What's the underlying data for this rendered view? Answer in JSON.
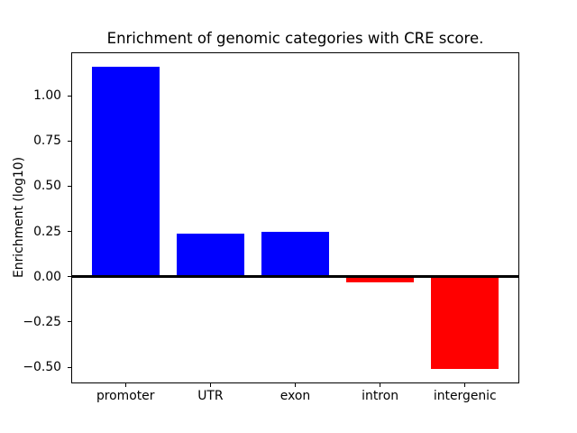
{
  "figure": {
    "background": "#ffffff"
  },
  "chart_data": {
    "type": "bar",
    "title": "Enrichment of genomic categories with CRE score.",
    "xlabel": "",
    "ylabel": "Enrichment (log10)",
    "categories": [
      "promoter",
      "UTR",
      "exon",
      "intron",
      "intergenic"
    ],
    "values": [
      1.16,
      0.24,
      0.25,
      -0.03,
      -0.51
    ],
    "bar_colors": [
      "#0000ff",
      "#0000ff",
      "#0000ff",
      "#ff0000",
      "#ff0000"
    ],
    "positive_color": "#0000ff",
    "negative_color": "#ff0000",
    "bar_width": 0.8,
    "xlim": [
      -0.64,
      4.64
    ],
    "ylim": [
      -0.59,
      1.24
    ],
    "yticks": [
      1.0,
      0.75,
      0.5,
      0.25,
      0.0,
      -0.25,
      -0.5
    ],
    "ytick_labels": [
      "1.00",
      "0.75",
      "0.50",
      "0.25",
      "0.00",
      "−0.25",
      "−0.50"
    ],
    "zero_line": true,
    "grid": false,
    "legend": "none",
    "axis_color": "#000000"
  }
}
